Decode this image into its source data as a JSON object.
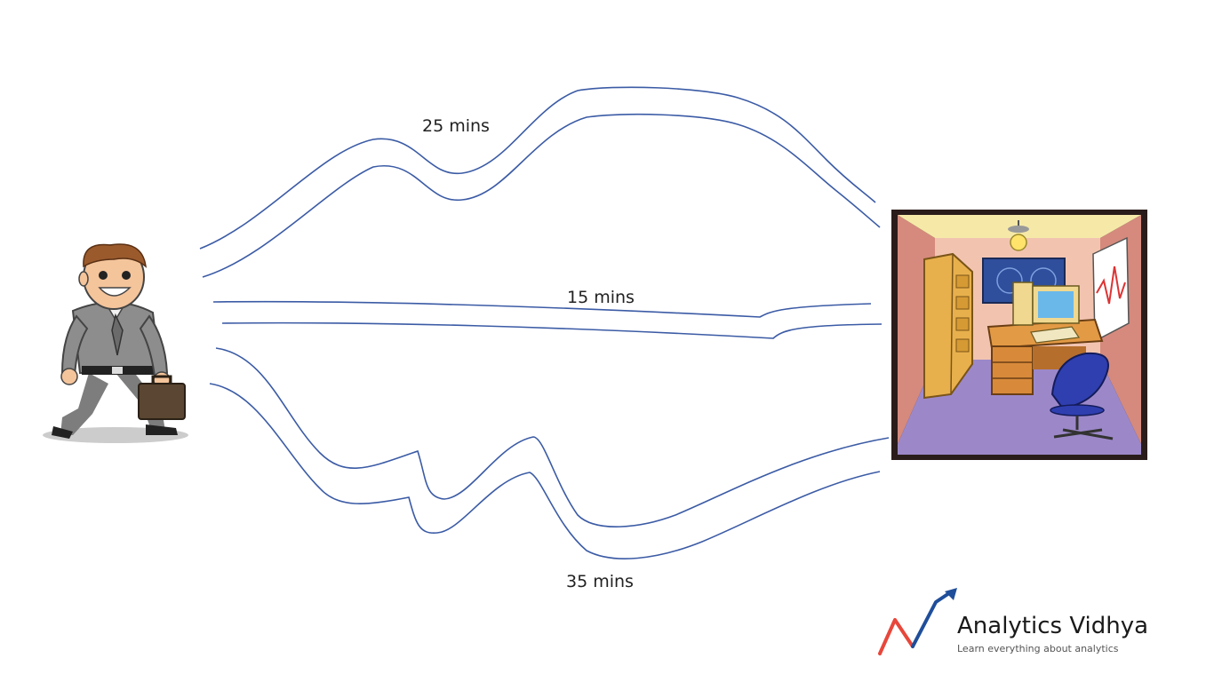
{
  "routes": [
    {
      "label": "25 mins"
    },
    {
      "label": "15 mins"
    },
    {
      "label": "35 mins"
    }
  ],
  "brand": {
    "name": "Analytics Vidhya",
    "tagline": "Learn everything about analytics",
    "colors": {
      "red": "#e8473b",
      "blue": "#1f4e9a"
    }
  },
  "colors": {
    "road": "#3b5ba5",
    "room_wall": "#d58a7d",
    "room_back": "#f2c4b0",
    "floor": "#9c88c9",
    "desk": "#e39a45",
    "chair": "#2f3fb0"
  },
  "icons": [
    "walking-man-icon",
    "office-room-icon",
    "analytics-vidhya-logo"
  ]
}
